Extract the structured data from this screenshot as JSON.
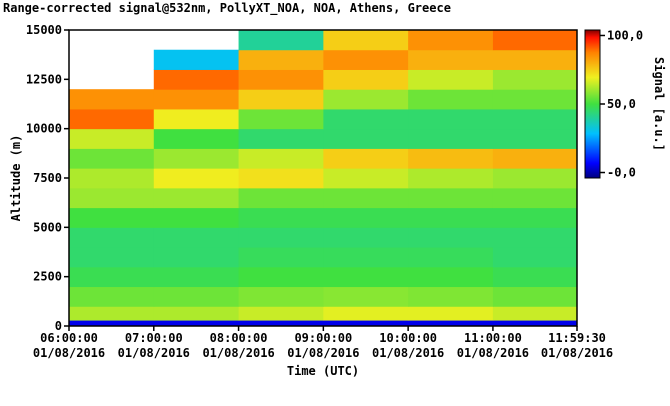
{
  "chart_data": {
    "type": "heatmap",
    "title": "Range-corrected signal@532nm, PollyXT_NOA, NOA, Athens, Greece",
    "x_label": "Time (UTC)",
    "y_label": "Altitude (m)",
    "colorbar_label": "Signal [a.u.]",
    "colormap": "jet",
    "xlim": [
      6,
      11.9917
    ],
    "ylim": [
      0,
      15000
    ],
    "clim": [
      -4,
      104
    ],
    "xticks": [
      {
        "value": 6,
        "label": "06:00:00 01/08/2016"
      },
      {
        "value": 7,
        "label": "07:00:00 01/08/2016"
      },
      {
        "value": 8,
        "label": "08:00:00 01/08/2016"
      },
      {
        "value": 9,
        "label": "09:00:00 01/08/2016"
      },
      {
        "value": 10,
        "label": "10:00:00 01/08/2016"
      },
      {
        "value": 11,
        "label": "11:00:00 01/08/2016"
      },
      {
        "value": 11.9917,
        "label": "11:59:30 01/08/2016"
      }
    ],
    "yticks": [
      0,
      2500,
      5000,
      7500,
      10000,
      12500,
      15000
    ],
    "cticks": [
      {
        "value": 100,
        "label": "100,0"
      },
      {
        "value": 50,
        "label": "50,0"
      },
      {
        "value": 0,
        "label": "-0,0"
      }
    ],
    "x_edges": [
      6,
      7,
      8,
      9,
      10,
      11,
      11.9917
    ],
    "y_edges": [
      0,
      300,
      1000,
      2000,
      3000,
      4000,
      5000,
      6000,
      7000,
      8000,
      9000,
      10000,
      11000,
      12000,
      13000,
      14000,
      15000
    ],
    "z": [
      [
        5,
        5,
        5,
        5,
        5,
        5
      ],
      [
        62,
        62,
        65,
        68,
        68,
        65
      ],
      [
        55,
        55,
        57,
        58,
        57,
        55
      ],
      [
        48,
        48,
        50,
        50,
        50,
        48
      ],
      [
        45,
        45,
        47,
        47,
        47,
        45
      ],
      [
        45,
        45,
        45,
        45,
        45,
        45
      ],
      [
        50,
        50,
        48,
        48,
        48,
        48
      ],
      [
        60,
        60,
        55,
        55,
        55,
        55
      ],
      [
        62,
        70,
        72,
        65,
        62,
        60
      ],
      [
        55,
        60,
        65,
        75,
        78,
        80
      ],
      [
        65,
        50,
        45,
        45,
        45,
        45
      ],
      [
        90,
        70,
        55,
        45,
        45,
        45
      ],
      [
        85,
        85,
        75,
        60,
        55,
        55
      ],
      [
        null,
        90,
        85,
        75,
        65,
        60
      ],
      [
        null,
        30,
        80,
        85,
        80,
        80
      ],
      [
        null,
        null,
        40,
        75,
        85,
        90
      ]
    ]
  }
}
